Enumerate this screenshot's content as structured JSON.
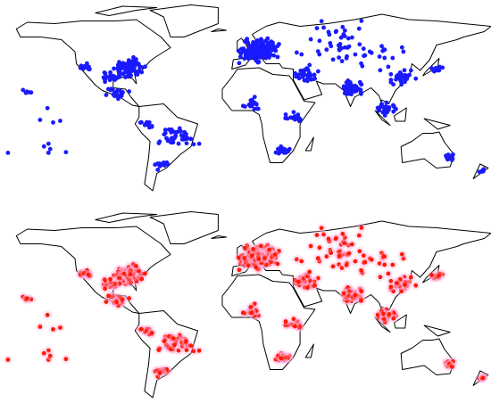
{
  "maps": [
    {
      "color": "#1a1aff"
    },
    {
      "color": "#ff1a00"
    }
  ]
}
